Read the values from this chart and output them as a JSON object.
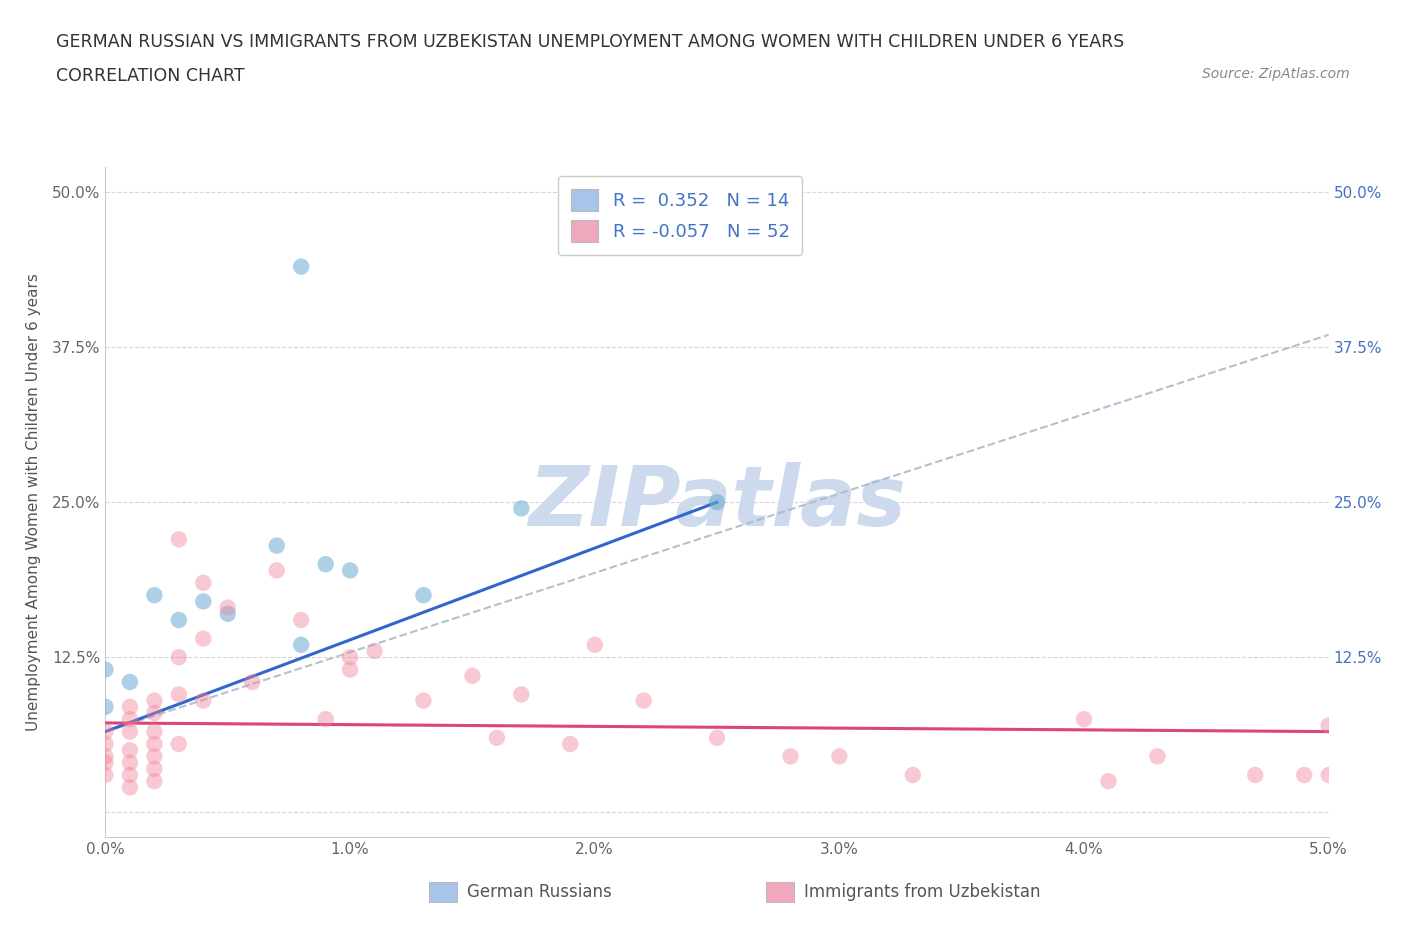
{
  "title_line1": "GERMAN RUSSIAN VS IMMIGRANTS FROM UZBEKISTAN UNEMPLOYMENT AMONG WOMEN WITH CHILDREN UNDER 6 YEARS",
  "title_line2": "CORRELATION CHART",
  "source": "Source: ZipAtlas.com",
  "ylabel": "Unemployment Among Women with Children Under 6 years",
  "xlim": [
    0.0,
    0.05
  ],
  "ylim": [
    -0.02,
    0.52
  ],
  "xticks": [
    0.0,
    0.01,
    0.02,
    0.03,
    0.04,
    0.05
  ],
  "xtick_labels": [
    "0.0%",
    "1.0%",
    "2.0%",
    "3.0%",
    "4.0%",
    "5.0%"
  ],
  "yticks": [
    0.0,
    0.125,
    0.25,
    0.375,
    0.5
  ],
  "ytick_labels": [
    "",
    "12.5%",
    "25.0%",
    "37.5%",
    "50.0%"
  ],
  "ytick_labels_right": [
    "",
    "12.5%",
    "25.0%",
    "37.5%",
    "50.0%"
  ],
  "background_color": "#ffffff",
  "plot_bg_color": "#ffffff",
  "grid_color": "#cccccc",
  "watermark": "ZIPatlas",
  "watermark_color": "#cdd9ec",
  "legend_r1": "R =  0.352   N = 14",
  "legend_r2": "R = -0.057   N = 52",
  "legend_color1": "#a8c4e8",
  "legend_color2": "#f0a8bc",
  "blue_color": "#6aaad4",
  "pink_color": "#f08098",
  "blue_line_color": "#3366cc",
  "pink_line_color": "#dd4477",
  "dash_line_color": "#aabbcc",
  "blue_scatter_x": [
    0.0,
    0.0,
    0.001,
    0.002,
    0.003,
    0.004,
    0.005,
    0.007,
    0.008,
    0.009,
    0.01,
    0.013,
    0.017,
    0.025
  ],
  "blue_scatter_y": [
    0.085,
    0.115,
    0.105,
    0.175,
    0.155,
    0.17,
    0.16,
    0.215,
    0.135,
    0.2,
    0.195,
    0.175,
    0.245,
    0.25
  ],
  "blue_outlier_x": [
    0.008
  ],
  "blue_outlier_y": [
    0.44
  ],
  "pink_scatter_x": [
    0.0,
    0.0,
    0.0,
    0.0,
    0.0,
    0.001,
    0.001,
    0.001,
    0.001,
    0.001,
    0.001,
    0.001,
    0.002,
    0.002,
    0.002,
    0.002,
    0.002,
    0.002,
    0.002,
    0.003,
    0.003,
    0.003,
    0.003,
    0.004,
    0.004,
    0.004,
    0.005,
    0.006,
    0.007,
    0.008,
    0.009,
    0.01,
    0.01,
    0.011,
    0.013,
    0.015,
    0.016,
    0.017,
    0.019,
    0.02,
    0.022,
    0.025,
    0.028,
    0.03,
    0.033,
    0.04,
    0.041,
    0.043,
    0.047,
    0.049,
    0.05,
    0.05
  ],
  "pink_scatter_y": [
    0.065,
    0.055,
    0.045,
    0.04,
    0.03,
    0.085,
    0.075,
    0.065,
    0.05,
    0.04,
    0.03,
    0.02,
    0.09,
    0.08,
    0.065,
    0.055,
    0.045,
    0.035,
    0.025,
    0.22,
    0.125,
    0.095,
    0.055,
    0.185,
    0.14,
    0.09,
    0.165,
    0.105,
    0.195,
    0.155,
    0.075,
    0.125,
    0.115,
    0.13,
    0.09,
    0.11,
    0.06,
    0.095,
    0.055,
    0.135,
    0.09,
    0.06,
    0.045,
    0.045,
    0.03,
    0.075,
    0.025,
    0.045,
    0.03,
    0.03,
    0.07,
    0.03
  ],
  "blue_trend_x": [
    0.0,
    0.025
  ],
  "blue_trend_y": [
    0.065,
    0.25
  ],
  "pink_trend_x": [
    0.0,
    0.05
  ],
  "pink_trend_y": [
    0.072,
    0.065
  ],
  "dash_trend_x": [
    0.0,
    0.05
  ],
  "dash_trend_y": [
    0.065,
    0.385
  ]
}
